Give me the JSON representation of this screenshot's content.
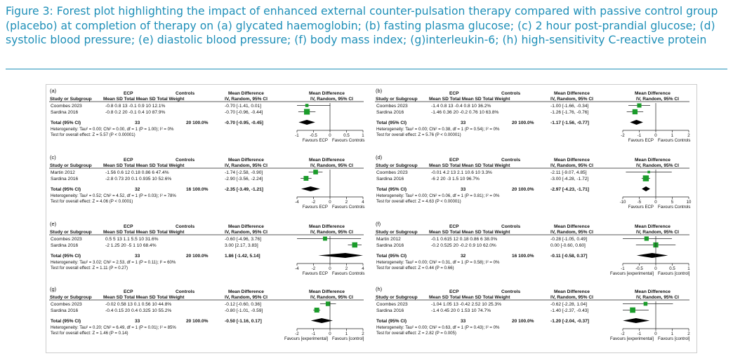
{
  "caption": "Figure 3: Forest plot highlighting the impact of enhanced external counter-pulsation therapy compared with passive control group (placebo) at completion of therapy on (a) glycated haemoglobin; (b) fasting plasma glucose; (c) 2 hour post-prandial glucose; (d) systolic blood pressure; (e) diastolic blood pressure; (f) body mass index; (g)interleukin-6; (h) high-sensitivity C-reactive protein",
  "colors": {
    "caption": "#1e8fb8",
    "marker": "#1a9c2a",
    "diamond": "#000000",
    "rule": "#1e8fb8"
  },
  "panels": [
    {
      "label": "(a)",
      "header_ecp": "ECP",
      "header_controls": "Controls",
      "header_md_left": "Mean Difference",
      "header_md_right": "Mean Difference",
      "header_study": "Study or Subgroup",
      "header_cols": "Mean   SD  Total  Mean   SD  Total  Weight",
      "header_method_left": "IV, Random, 95% CI",
      "header_method_right": "IV, Random, 95% CI",
      "studies": [
        {
          "name": "Coombes 2023",
          "data": "-0.8   0.8     13    -0.1   0.9     10   12.1%",
          "ci_text": "-0.70 [-1.41, 0.01]",
          "md": -0.7,
          "lo": -1.41,
          "hi": 0.01,
          "weight": 12.1
        },
        {
          "name": "Sardina 2016",
          "data": "-0.8   0.2     20    -0.1   0.4     10   87.9%",
          "ci_text": "-0.70 [-0.96, -0.44]",
          "md": -0.7,
          "lo": -0.96,
          "hi": -0.44,
          "weight": 87.9
        }
      ],
      "total_label": "Total (95% CI)",
      "total_n_ecp": "33",
      "total_n_ctrl": "20  100.0%",
      "total_ci_text": "-0.70 [-0.95, -0.45]",
      "total_md": -0.7,
      "total_lo": -0.95,
      "total_hi": -0.45,
      "heterogeneity": "Heterogeneity: Tau² = 0.00; Chi² = 0.00, df = 1 (P = 1.00); I² = 0%",
      "overall": "Test for overall effect: Z = 5.57 (P < 0.00001)",
      "axis": {
        "min": -1,
        "max": 1,
        "ticks": [
          -1,
          -0.5,
          0,
          0.5,
          1
        ],
        "tick_labels": [
          "-1",
          "-0.5",
          "0",
          "0.5",
          "1"
        ]
      },
      "favours_left": "Favours ECP",
      "favours_right": "Favours Controls"
    },
    {
      "label": "(b)",
      "header_ecp": "ECP",
      "header_controls": "Controls",
      "header_md_left": "Mean Difference",
      "header_md_right": "Mean Difference",
      "header_study": "Study or Subgroup",
      "header_cols": "Mean   SD  Total  Mean   SD  Total  Weight",
      "header_method_left": "IV, Random, 95% CI",
      "header_method_right": "IV, Random, 95% CI",
      "studies": [
        {
          "name": "Coombes 2023",
          "data": "-1.4   0.8     13    -0.4   0.8     10   36.2%",
          "ci_text": "-1.00 [-1.66, -0.34]",
          "md": -1.0,
          "lo": -1.66,
          "hi": -0.34,
          "weight": 36.2
        },
        {
          "name": "Sardina 2016",
          "data": "-1.46  0.36    20    -0.2  0.76    10   63.8%",
          "ci_text": "-1.26 [-1.76, -0.76]",
          "md": -1.26,
          "lo": -1.76,
          "hi": -0.76,
          "weight": 63.8
        }
      ],
      "total_label": "Total (95% CI)",
      "total_n_ecp": "33",
      "total_n_ctrl": "20  100.0%",
      "total_ci_text": "-1.17 [-1.56, -0.77]",
      "total_md": -1.17,
      "total_lo": -1.56,
      "total_hi": -0.77,
      "heterogeneity": "Heterogeneity: Tau² = 0.00; Chi² = 0.38, df = 1 (P = 0.54); I² = 0%",
      "overall": "Test for overall effect: Z = 5.76 (P < 0.00001)",
      "axis": {
        "min": -2,
        "max": 2,
        "ticks": [
          -2,
          -1,
          0,
          1,
          2
        ],
        "tick_labels": [
          "-2",
          "-1",
          "0",
          "1",
          "2"
        ]
      },
      "favours_left": "Favours ECP",
      "favours_right": "Favours Controls"
    },
    {
      "label": "(c)",
      "header_ecp": "ECP",
      "header_controls": "Controls",
      "header_md_left": "Mean Difference",
      "header_md_right": "Mean Difference",
      "header_study": "Study or Subgroup",
      "header_cols": "Mean   SD  Total  Mean   SD  Total  Weight",
      "header_method_left": "IV, Random, 95% CI",
      "header_method_right": "IV, Random, 95% CI",
      "studies": [
        {
          "name": "Martin 2012",
          "data": "-1.56   0.6    12   0.18  0.86      6   47.4%",
          "ci_text": "-1.74 [-2.58, -0.90]",
          "md": -1.74,
          "lo": -2.58,
          "hi": -0.9,
          "weight": 47.4
        },
        {
          "name": "Sardina 2016",
          "data": "-2.8   0.73    20    0.1  0.935    10   52.6%",
          "ci_text": "-2.90 [-3.56, -2.24]",
          "md": -2.9,
          "lo": -3.56,
          "hi": -2.24,
          "weight": 52.6
        }
      ],
      "total_label": "Total (95% CI)",
      "total_n_ecp": "32",
      "total_n_ctrl": "16  100.0%",
      "total_ci_text": "-2.35 [-3.49, -1.21]",
      "total_md": -2.35,
      "total_lo": -3.49,
      "total_hi": -1.21,
      "heterogeneity": "Heterogeneity: Tau² = 0.52; Chi² = 4.52, df = 1 (P = 0.03); I² = 78%",
      "overall": "Test for overall effect: Z = 4.06 (P < 0.0001)",
      "axis": {
        "min": -4,
        "max": 4,
        "ticks": [
          -4,
          -2,
          0,
          2,
          4
        ],
        "tick_labels": [
          "-4",
          "-2",
          "0",
          "2",
          "4"
        ]
      },
      "favours_left": "Favours ECP",
      "favours_right": "Favours Controls"
    },
    {
      "label": "(d)",
      "header_ecp": "ECP",
      "header_controls": "Controls",
      "header_md_left": "Mean Difference",
      "header_md_right": "Mean Difference",
      "header_study": "Study or Subgroup",
      "header_cols": "Mean   SD  Total  Mean   SD  Total  Weight",
      "header_method_left": "IV, Random, 95% CI",
      "header_method_right": "IV, Random, 95% CI",
      "studies": [
        {
          "name": "Coombes 2023",
          "data": "-0.01   4.2    13    2.1   10.6    10    3.3%",
          "ci_text": "-2.11 [-9.07, 4.85]",
          "md": -2.11,
          "lo": -9.07,
          "hi": 4.85,
          "weight": 3.3
        },
        {
          "name": "Sardina 2016",
          "data": "-6      2      20    -3    1.5     10   96.7%",
          "ci_text": "-3.00 [-4.28, -1.72]",
          "md": -3.0,
          "lo": -4.28,
          "hi": -1.72,
          "weight": 96.7
        }
      ],
      "total_label": "Total (95% CI)",
      "total_n_ecp": "33",
      "total_n_ctrl": "20  100.0%",
      "total_ci_text": "-2.97 [-4.23, -1.71]",
      "total_md": -2.97,
      "total_lo": -4.23,
      "total_hi": -1.71,
      "heterogeneity": "Heterogeneity: Tau² = 0.00; Chi² = 0.06, df = 1 (P = 0.81); I² = 0%",
      "overall": "Test for overall effect: Z = 4.63 (P < 0.00001)",
      "axis": {
        "min": -10,
        "max": 10,
        "ticks": [
          -10,
          -5,
          0,
          5,
          10
        ],
        "tick_labels": [
          "-10",
          "-5",
          "0",
          "5",
          "10"
        ]
      },
      "favours_left": "Favours ECP",
      "favours_right": "Favours Controls"
    },
    {
      "label": "(e)",
      "header_ecp": "ECP",
      "header_controls": "Controls",
      "header_md_left": "Mean Difference",
      "header_md_right": "Mean Difference",
      "header_study": "Study or Subgroup",
      "header_cols": "Mean   SD  Total  Mean   SD  Total  Weight",
      "header_method_left": "IV, Random, 95% CI",
      "header_method_right": "IV, Random, 95% CI",
      "studies": [
        {
          "name": "Coombes 2023",
          "data": "0.5     5     13    1.1   5.5     10   31.6%",
          "ci_text": "-0.60 [-4.96, 3.76]",
          "md": -0.6,
          "lo": -4.96,
          "hi": 3.76,
          "weight": 31.6
        },
        {
          "name": "Sardina 2016",
          "data": "-2   1.25     20     -5     1     10   68.4%",
          "ci_text": "3.00 [2.17, 3.83]",
          "md": 3.0,
          "lo": 2.17,
          "hi": 3.83,
          "weight": 68.4
        }
      ],
      "total_label": "Total (95% CI)",
      "total_n_ecp": "33",
      "total_n_ctrl": "20  100.0%",
      "total_ci_text": "1.86 [-1.42, 5.14]",
      "total_md": 1.86,
      "total_lo": -1.42,
      "total_hi": 5.14,
      "heterogeneity": "Heterogeneity: Tau² = 3.02; Chi² = 2.53, df = 1 (P = 0.11); I² = 60%",
      "overall": "Test for overall effect: Z = 1.11 (P = 0.27)",
      "axis": {
        "min": -4,
        "max": 4,
        "ticks": [
          -4,
          -2,
          0,
          2,
          4
        ],
        "tick_labels": [
          "-4",
          "-2",
          "0",
          "2",
          "4"
        ]
      },
      "favours_left": "Favours ECP",
      "favours_right": "Favours Controls"
    },
    {
      "label": "(f)",
      "header_ecp": "ECP",
      "header_controls": "Controls",
      "header_md_left": "Mean Difference",
      "header_md_right": "Mean Difference",
      "header_study": "Study or Subgroup",
      "header_cols": "Mean   SD  Total  Mean   SD  Total  Weight",
      "header_method_left": "IV, Random, 95% CI",
      "header_method_right": "IV, Random, 95% CI",
      "studies": [
        {
          "name": "Martin 2012",
          "data": "-0.1  0.615    12   0.18  0.86      6   38.0%",
          "ci_text": "-0.28 [-1.05, 0.49]",
          "md": -0.28,
          "lo": -1.05,
          "hi": 0.49,
          "weight": 38.0
        },
        {
          "name": "Sardina 2016",
          "data": "-0.2  0.525    20   -0.2   0.9     10   62.0%",
          "ci_text": "0.00 [-0.60, 0.60]",
          "md": 0.0,
          "lo": -0.6,
          "hi": 0.6,
          "weight": 62.0
        }
      ],
      "total_label": "Total (95% CI)",
      "total_n_ecp": "32",
      "total_n_ctrl": "16  100.0%",
      "total_ci_text": "-0.11 [-0.58, 0.37]",
      "total_md": -0.11,
      "total_lo": -0.58,
      "total_hi": 0.37,
      "heterogeneity": "Heterogeneity: Tau² = 0.00; Chi² = 0.31, df = 1 (P = 0.58); I² = 0%",
      "overall": "Test for overall effect: Z = 0.44 (P = 0.66)",
      "axis": {
        "min": -1,
        "max": 1,
        "ticks": [
          -1,
          -0.5,
          0,
          0.5,
          1
        ],
        "tick_labels": [
          "-1",
          "-0.5",
          "0",
          "0.5",
          "1"
        ]
      },
      "favours_left": "Favours [experimental]",
      "favours_right": "Favours [control]"
    },
    {
      "label": "(g)",
      "header_ecp": "ECP",
      "header_controls": "Controls",
      "header_md_left": "Mean Difference",
      "header_md_right": "Mean Difference",
      "header_study": "Study or Subgroup",
      "header_cols": "Mean   SD  Total  Mean   SD  Total  Weight",
      "header_method_left": "IV, Random, 95% CI",
      "header_method_right": "IV, Random, 95% CI",
      "studies": [
        {
          "name": "Coombes 2023",
          "data": "-0.02  0.58    13    0.1  0.56     10   44.8%",
          "ci_text": "-0.12 [-0.60, 0.36]",
          "md": -0.12,
          "lo": -0.6,
          "hi": 0.36,
          "weight": 44.8
        },
        {
          "name": "Sardina 2016",
          "data": "-0.4   0.15    20    0.4  0.325    10   55.2%",
          "ci_text": "-0.80 [-1.01, -0.59]",
          "md": -0.8,
          "lo": -1.01,
          "hi": -0.59,
          "weight": 55.2
        }
      ],
      "total_label": "Total (95% CI)",
      "total_n_ecp": "33",
      "total_n_ctrl": "20  100.0%",
      "total_ci_text": "-0.50 [-1.16, 0.17]",
      "total_md": -0.5,
      "total_lo": -1.16,
      "total_hi": 0.17,
      "heterogeneity": "Heterogeneity: Tau² = 0.20; Chi² = 6.49, df = 1 (P = 0.01); I² = 85%",
      "overall": "Test for overall effect: Z = 1.46 (P = 0.14)",
      "axis": {
        "min": -2,
        "max": 2,
        "ticks": [
          -2,
          -1,
          0,
          1,
          2
        ],
        "tick_labels": [
          "-2",
          "-1",
          "0",
          "1",
          "2"
        ]
      },
      "favours_left": "Favours [experimental]",
      "favours_right": "Favours [control]"
    },
    {
      "label": "(h)",
      "header_ecp": "ECP",
      "header_controls": "Controls",
      "header_md_left": "Mean Difference",
      "header_md_right": "Mean Difference",
      "header_study": "Study or Subgroup",
      "header_cols": "Mean   SD  Total  Mean   SD  Total  Weight",
      "header_method_left": "IV, Random, 95% CI",
      "header_method_right": "IV, Random, 95% CI",
      "studies": [
        {
          "name": "Coombes 2023",
          "data": "-1.04  1.05    13  -0.42  2.52     10   25.3%",
          "ci_text": "-0.62 [-2.28, 1.04]",
          "md": -0.62,
          "lo": -2.28,
          "hi": 1.04,
          "weight": 25.3
        },
        {
          "name": "Sardina 2016",
          "data": "-1.4   0.45    20     0   1.53     10   74.7%",
          "ci_text": "-1.40 [-2.37, -0.43]",
          "md": -1.4,
          "lo": -2.37,
          "hi": -0.43,
          "weight": 74.7
        }
      ],
      "total_label": "Total (95% CI)",
      "total_n_ecp": "33",
      "total_n_ctrl": "20  100.0%",
      "total_ci_text": "-1.20 [-2.04, -0.37]",
      "total_md": -1.2,
      "total_lo": -2.04,
      "total_hi": -0.37,
      "heterogeneity": "Heterogeneity: Tau² = 0.00; Chi² = 0.63, df = 1 (P = 0.43); I² = 0%",
      "overall": "Test for overall effect: Z = 2.82 (P = 0.005)",
      "axis": {
        "min": -2,
        "max": 2,
        "ticks": [
          -2,
          -1,
          0,
          1,
          2
        ],
        "tick_labels": [
          "-2",
          "-1",
          "0",
          "1",
          "2"
        ]
      },
      "favours_left": "Favours [experimental]",
      "favours_right": "Favours [control]"
    }
  ]
}
